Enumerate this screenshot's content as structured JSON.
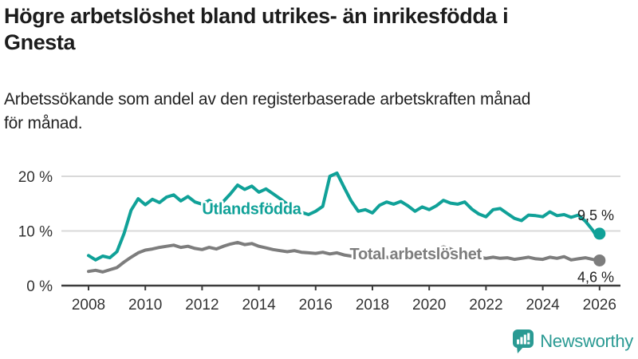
{
  "header": {
    "title_lines": [
      "Högre arbetslöshet bland utrikes- än inrikesfödda i",
      "Gnesta"
    ],
    "subtitle_lines": [
      "Arbetssökande som andel av den registerbaserade arbetskraften månad",
      "för månad."
    ]
  },
  "colors": {
    "accent_teal": "#10a198",
    "series_gray": "#7d7d7d",
    "grid": "#d9d9d9",
    "axis": "#3c3c3c",
    "tick_text": "#333333",
    "annotation_text": "#222222",
    "title_text": "#1c1c1c"
  },
  "chart_data": {
    "type": "line",
    "title": "",
    "xlabel": "",
    "ylabel": "",
    "grid": "horizontal",
    "legend_position": "inline-labels",
    "xlim": [
      2007.4,
      2026.8
    ],
    "ylim": [
      0,
      22
    ],
    "xticks": [
      2008,
      2010,
      2012,
      2014,
      2016,
      2018,
      2020,
      2022,
      2024,
      2026
    ],
    "yticks": [
      {
        "value": 0,
        "label": "0 %"
      },
      {
        "value": 10,
        "label": "10 %"
      },
      {
        "value": 20,
        "label": "20 %"
      }
    ],
    "x": [
      2008,
      2008.25,
      2008.5,
      2008.75,
      2009,
      2009.25,
      2009.5,
      2009.75,
      2010,
      2010.25,
      2010.5,
      2010.75,
      2011,
      2011.25,
      2011.5,
      2011.75,
      2012,
      2012.25,
      2012.5,
      2012.75,
      2013,
      2013.25,
      2013.5,
      2013.75,
      2014,
      2014.25,
      2014.5,
      2014.75,
      2015,
      2015.25,
      2015.5,
      2015.75,
      2016,
      2016.25,
      2016.5,
      2016.75,
      2017,
      2017.25,
      2017.5,
      2017.75,
      2018,
      2018.25,
      2018.5,
      2018.75,
      2019,
      2019.25,
      2019.5,
      2019.75,
      2020,
      2020.25,
      2020.5,
      2020.75,
      2021,
      2021.25,
      2021.5,
      2021.75,
      2022,
      2022.25,
      2022.5,
      2022.75,
      2023,
      2023.25,
      2023.5,
      2023.75,
      2024,
      2024.25,
      2024.5,
      2024.75,
      2025,
      2025.25,
      2025.5,
      2025.75,
      2025.9,
      2026
    ],
    "series": [
      {
        "name": "Utlandsfödda",
        "color": "#10a198",
        "values": [
          5.5,
          4.7,
          5.4,
          5.1,
          6.2,
          9.5,
          13.8,
          15.9,
          14.8,
          15.8,
          15.2,
          16.2,
          16.6,
          15.5,
          16.3,
          15.3,
          14.9,
          15.6,
          14.6,
          15.4,
          16.8,
          18.4,
          17.6,
          18.2,
          17.1,
          17.7,
          16.8,
          15.9,
          14.9,
          14.2,
          13.4,
          13.0,
          13.6,
          14.5,
          20.0,
          20.6,
          18.0,
          15.5,
          13.6,
          13.9,
          13.3,
          14.7,
          15.3,
          14.9,
          15.4,
          14.6,
          13.6,
          14.4,
          13.9,
          14.6,
          15.6,
          15.1,
          14.9,
          15.3,
          14.0,
          13.1,
          12.6,
          13.9,
          14.1,
          13.2,
          12.3,
          11.9,
          12.9,
          12.8,
          12.6,
          13.5,
          12.8,
          13.0,
          12.5,
          12.9,
          11.8,
          10.2,
          9.0,
          9.5
        ],
        "inline_label": "Utlandsfödda",
        "inline_label_at": {
          "x": 2012.0,
          "y": 13.1
        },
        "end_label": "9,5 %",
        "end_label_position": "above"
      },
      {
        "name": "Total arbetslöshet",
        "color": "#7d7d7d",
        "values": [
          2.6,
          2.8,
          2.5,
          2.9,
          3.3,
          4.3,
          5.2,
          6.0,
          6.5,
          6.7,
          7.0,
          7.2,
          7.4,
          7.0,
          7.2,
          6.8,
          6.6,
          7.0,
          6.7,
          7.2,
          7.6,
          7.9,
          7.5,
          7.7,
          7.2,
          6.9,
          6.6,
          6.4,
          6.2,
          6.4,
          6.1,
          6.0,
          5.9,
          6.1,
          5.8,
          6.0,
          5.6,
          5.4,
          5.6,
          5.3,
          5.1,
          5.4,
          5.2,
          5.0,
          5.2,
          5.0,
          5.3,
          5.5,
          5.6,
          6.5,
          7.1,
          6.7,
          6.2,
          5.9,
          5.5,
          5.2,
          5.0,
          5.2,
          5.0,
          5.1,
          4.8,
          5.0,
          5.2,
          4.9,
          4.8,
          5.2,
          5.0,
          5.3,
          4.7,
          4.9,
          5.1,
          4.8,
          4.7,
          4.6
        ],
        "inline_label": "Total arbetslöshet",
        "inline_label_at": {
          "x": 2017.2,
          "y": 4.8
        },
        "end_label": "4,6 %",
        "end_label_position": "below"
      }
    ]
  },
  "footer": {
    "brand": "Newsworthy"
  }
}
